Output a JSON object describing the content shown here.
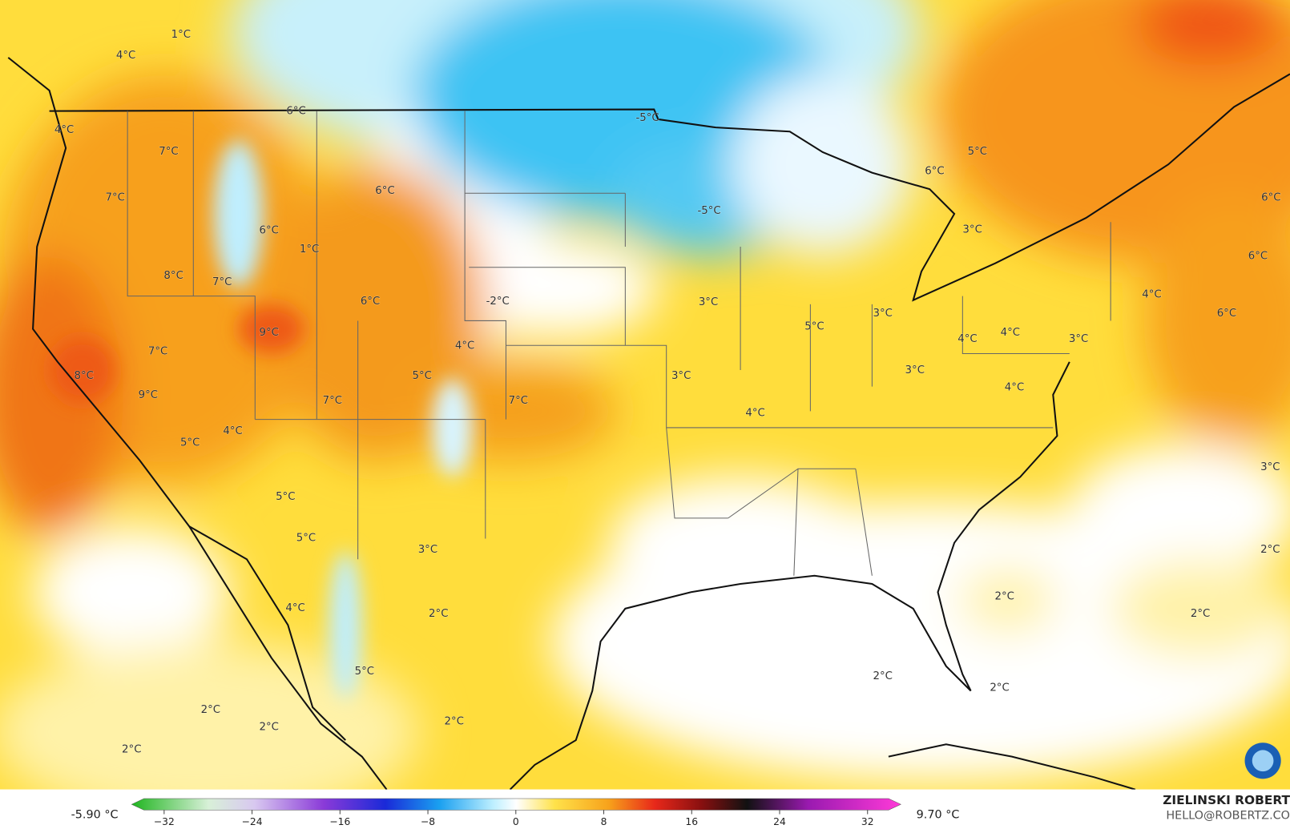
{
  "map": {
    "labels": [
      "1°C",
      "4°C",
      "6°C",
      "4°C",
      "7°C",
      "7°C",
      "6°C",
      "6°C",
      "1°C",
      "8°C",
      "7°C",
      "6°C",
      "9°C",
      "7°C",
      "8°C",
      "9°C",
      "4°C",
      "5°C",
      "7°C",
      "7°C",
      "4°C",
      "5°C",
      "5°C",
      "5°C",
      "3°C",
      "4°C",
      "2°C",
      "5°C",
      "2°C",
      "2°C",
      "2°C",
      "2°C",
      "-2°C",
      "3°C",
      "3°C",
      "4°C",
      "5°C",
      "3°C",
      "3°C",
      "4°C",
      "4°C",
      "3°C",
      "4°C",
      "4°C",
      "6°C",
      "3°C",
      "6°C",
      "5°C",
      "-5°C",
      "-5°C",
      "6°C",
      "6°C",
      "3°C",
      "2°C",
      "2°C",
      "2°C",
      "2°C",
      "2°C"
    ]
  },
  "colorbar": {
    "min_label": "-5.90 °C",
    "max_label": "9.70 °C",
    "ticks": [
      {
        "value": -32,
        "label": "−32"
      },
      {
        "value": -24,
        "label": "−24"
      },
      {
        "value": -16,
        "label": "−16"
      },
      {
        "value": -8,
        "label": "−8"
      },
      0,
      8,
      16,
      24,
      32
    ]
  },
  "credit": {
    "author": "ZIELINSKI ROBERT",
    "email": "HELLO@ROBERTZ.CO"
  }
}
